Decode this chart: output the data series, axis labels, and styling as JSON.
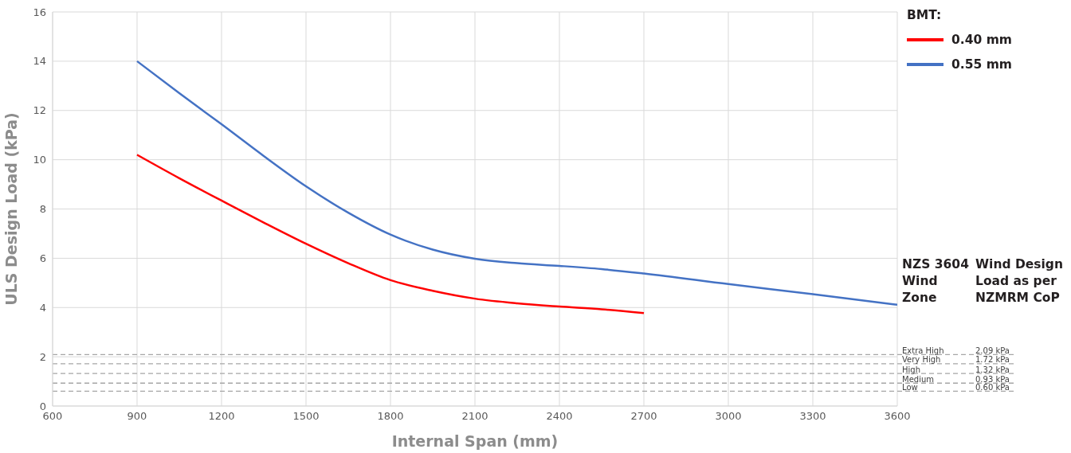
{
  "chart_data": {
    "type": "line",
    "xlabel": "Internal Span (mm)",
    "ylabel": "ULS Design Load (kPa)",
    "legend_title": "BMT:",
    "legend": "top right",
    "grid": true,
    "line_style": "solid",
    "marker": "none",
    "xlim": [
      600,
      3600
    ],
    "xticks": [
      600,
      900,
      1200,
      1500,
      1800,
      2100,
      2400,
      2700,
      3000,
      3300,
      3600
    ],
    "ylim": [
      0,
      16
    ],
    "yticks": [
      0,
      2,
      4,
      6,
      8,
      10,
      12,
      14,
      16
    ],
    "series": [
      {
        "name": "0.40 mm",
        "color": "#ff0000",
        "x": [
          900,
          1050,
          1200,
          1350,
          1500,
          1650,
          1800,
          1950,
          2100,
          2250,
          2400,
          2550,
          2700
        ],
        "values": [
          10.2,
          9.25,
          8.34,
          7.45,
          6.59,
          5.8,
          5.11,
          4.68,
          4.36,
          4.17,
          4.04,
          3.93,
          3.77
        ]
      },
      {
        "name": "0.55 mm",
        "color": "#4472c4",
        "x": [
          900,
          1050,
          1200,
          1350,
          1500,
          1650,
          1800,
          1950,
          2100,
          2250,
          2400,
          2550,
          2700,
          3000,
          3300,
          3600
        ],
        "values": [
          14.0,
          12.7,
          11.44,
          10.15,
          8.92,
          7.85,
          6.96,
          6.35,
          5.98,
          5.8,
          5.69,
          5.56,
          5.38,
          4.95,
          4.54,
          4.11
        ]
      }
    ],
    "ref_lines": [
      {
        "axis": "y",
        "value": 2.09,
        "label": "Extra High",
        "color": "#a6a6a6",
        "line_style": "dashed"
      },
      {
        "axis": "y",
        "value": 1.72,
        "label": "Very High",
        "color": "#a6a6a6",
        "line_style": "dashed"
      },
      {
        "axis": "y",
        "value": 1.32,
        "label": "High",
        "color": "#a6a6a6",
        "line_style": "dashed"
      },
      {
        "axis": "y",
        "value": 0.93,
        "label": "Medium",
        "color": "#a6a6a6",
        "line_style": "dashed"
      },
      {
        "axis": "y",
        "value": 0.6,
        "label": "Low",
        "color": "#a6a6a6",
        "line_style": "dashed"
      }
    ],
    "annotations": [
      "NZS 3604 Wind Zone",
      "Wind Design Load as per NZMRM CoP",
      "2.09 kPa",
      "1.72 kPa",
      "1.32 kPa",
      "0.93 kPa",
      "0.60 kPa"
    ]
  }
}
